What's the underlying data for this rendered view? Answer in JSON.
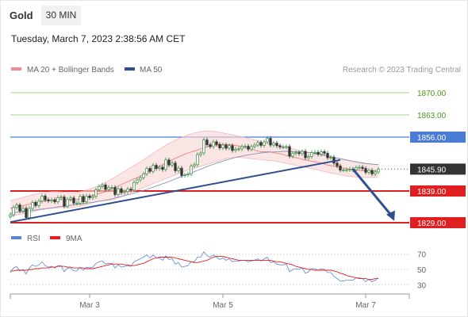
{
  "header": {
    "symbol": "Gold",
    "timeframe": "30 MIN",
    "datetime": "Tuesday, March 7, 2023 2:38:56 AM CET"
  },
  "colors": {
    "up_candle": "#2e8b3a",
    "down_candle": "#333333",
    "bollinger_fill": "#f9d6d6",
    "ma20": "#e57373",
    "ma50": "#7a8ab8",
    "trendline": "#2d4f8f",
    "resistance_green": "#a9d68a",
    "resistance_blue": "#4a7bd6",
    "support_red": "#e02020",
    "rsi": "#5b82d6",
    "rsi_ma": "#e02020"
  },
  "chart_data": [
    {
      "type": "candlestick",
      "instrument": "Gold",
      "timeframe": "30 MIN",
      "legend": [
        {
          "label": "MA 20 + Bollinger Bands",
          "color": "#f28b8b"
        },
        {
          "label": "MA 50",
          "color": "#2d4f8f"
        }
      ],
      "watermark": "Research © 2023 Trading Central",
      "x_ticks": [
        "Mar 3",
        "Mar 5",
        "Mar 7"
      ],
      "ylim": [
        1826,
        1874
      ],
      "levels": [
        {
          "value": 1870.0,
          "label": "1870.00",
          "kind": "resistance",
          "color": "#a9d68a",
          "label_color": "#4a9a1a",
          "label_bg": "#ffffff"
        },
        {
          "value": 1863.0,
          "label": "1863.00",
          "kind": "resistance",
          "color": "#a9d68a",
          "label_color": "#4a9a1a",
          "label_bg": "#ffffff"
        },
        {
          "value": 1856.0,
          "label": "1856.00",
          "kind": "pivot",
          "color": "#4a7bd6",
          "label_color": "#ffffff",
          "label_bg": "#4a7bd6"
        },
        {
          "value": 1845.9,
          "label": "1845.90",
          "kind": "last_price",
          "color": "#333333",
          "label_color": "#ffffff",
          "label_bg": "#333333"
        },
        {
          "value": 1839.0,
          "label": "1839.00",
          "kind": "support",
          "color": "#e02020",
          "label_color": "#ffffff",
          "label_bg": "#e02020"
        },
        {
          "value": 1829.0,
          "label": "1829.00",
          "kind": "support",
          "color": "#e02020",
          "label_color": "#ffffff",
          "label_bg": "#e02020"
        }
      ],
      "close": [
        1831.5,
        1833.8,
        1834.6,
        1832.7,
        1833.5,
        1830.6,
        1833.5,
        1835.4,
        1834.4,
        1835.8,
        1837.4,
        1836.2,
        1835.9,
        1836.2,
        1835.6,
        1836.9,
        1837.1,
        1834.2,
        1836.4,
        1836.8,
        1835.2,
        1835.2,
        1837.3,
        1835.6,
        1837.4,
        1836.9,
        1837.3,
        1839.4,
        1840.4,
        1840.9,
        1839.5,
        1840.1,
        1840.1,
        1837.9,
        1839.7,
        1838.5,
        1838.8,
        1839.6,
        1839.3,
        1841.7,
        1842.5,
        1843.2,
        1844.4,
        1846.1,
        1845.2,
        1847.1,
        1846.1,
        1846.5,
        1845.8,
        1848.8,
        1847.2,
        1847.8,
        1845.4,
        1846.2,
        1843.9,
        1844.1,
        1844.4,
        1846.9,
        1847.3,
        1850.5,
        1851.0,
        1855.1,
        1853.6,
        1853.0,
        1854.5,
        1853.7,
        1852.6,
        1853.5,
        1852.5,
        1853.3,
        1851.8,
        1852.2,
        1852.3,
        1853.0,
        1853.1,
        1852.2,
        1853.0,
        1853.5,
        1854.3,
        1853.4,
        1854.5,
        1855.6,
        1853.5,
        1854.1,
        1853.3,
        1852.9,
        1852.9,
        1853.0,
        1850.0,
        1850.9,
        1851.1,
        1850.8,
        1851.5,
        1849.5,
        1849.9,
        1851.1,
        1851.2,
        1850.6,
        1851.4,
        1850.9,
        1849.5,
        1849.6,
        1847.8,
        1846.9,
        1845.6,
        1845.6,
        1845.7,
        1845.9,
        1845.7,
        1846.4,
        1846.5,
        1846.1,
        1844.9,
        1845.5,
        1844.4,
        1845.0,
        1845.9
      ],
      "ma20": [
        1833.5,
        1833.7,
        1833.9,
        1834.1,
        1834.4,
        1834.6,
        1834.8,
        1835.1,
        1835.3,
        1835.5,
        1835.7,
        1835.9,
        1836.0,
        1836.1,
        1836.2,
        1836.3,
        1836.3,
        1836.2,
        1836.1,
        1836.1,
        1836.2,
        1836.3,
        1836.5,
        1836.7,
        1837.0,
        1837.3,
        1837.6,
        1837.9,
        1838.2,
        1838.5,
        1838.8,
        1839.2,
        1839.6,
        1840.1,
        1840.6,
        1841.0,
        1841.5,
        1841.9,
        1842.4,
        1842.8,
        1843.2,
        1843.7,
        1844.3,
        1844.8,
        1845.3,
        1845.8,
        1846.3,
        1846.8,
        1847.3,
        1847.8,
        1848.3,
        1848.8,
        1849.3,
        1849.7,
        1850.2,
        1850.6,
        1851.0,
        1851.3,
        1851.6,
        1851.9,
        1852.3,
        1852.6,
        1852.9,
        1853.2,
        1853.4,
        1853.5,
        1853.6,
        1853.7,
        1853.7,
        1853.6,
        1853.5,
        1853.4,
        1853.2,
        1853.0,
        1852.8,
        1852.5,
        1852.2,
        1851.9,
        1851.6,
        1851.4,
        1851.4,
        1851.4,
        1851.3,
        1851.1,
        1850.9,
        1850.7,
        1850.5,
        1850.2,
        1850.0,
        1849.7,
        1849.5,
        1849.3,
        1849.0,
        1848.8,
        1848.6,
        1848.4,
        1848.2,
        1848.0,
        1847.8,
        1847.5,
        1847.2,
        1847.0,
        1846.8,
        1846.6,
        1846.4,
        1846.2,
        1846.0,
        1845.9,
        1845.7,
        1845.6,
        1845.5,
        1845.5,
        1845.4,
        1845.4,
        1845.4,
        1845.3,
        1845.3
      ],
      "bb_upper": [
        1836.0,
        1836.2,
        1836.4,
        1836.7,
        1837.0,
        1837.3,
        1837.5,
        1837.8,
        1838.0,
        1838.2,
        1838.4,
        1838.6,
        1838.7,
        1838.8,
        1838.8,
        1838.8,
        1838.7,
        1838.6,
        1838.5,
        1838.5,
        1838.5,
        1838.6,
        1838.8,
        1839.0,
        1839.3,
        1839.6,
        1840.0,
        1840.4,
        1840.8,
        1841.3,
        1841.8,
        1842.3,
        1842.8,
        1843.4,
        1844.0,
        1844.6,
        1845.2,
        1845.8,
        1846.4,
        1847.0,
        1847.6,
        1848.2,
        1848.9,
        1849.5,
        1850.2,
        1850.9,
        1851.5,
        1852.2,
        1852.8,
        1853.4,
        1854.0,
        1854.5,
        1855.0,
        1855.5,
        1855.9,
        1856.3,
        1856.7,
        1857.0,
        1857.3,
        1857.5,
        1857.7,
        1857.8,
        1857.9,
        1857.9,
        1857.8,
        1857.7,
        1857.5,
        1857.3,
        1857.1,
        1856.9,
        1856.7,
        1856.5,
        1856.3,
        1856.1,
        1855.9,
        1855.6,
        1855.4,
        1855.1,
        1854.8,
        1854.5,
        1854.3,
        1854.1,
        1853.9,
        1853.7,
        1853.5,
        1853.3,
        1853.1,
        1852.9,
        1852.6,
        1852.3,
        1852.1,
        1851.8,
        1851.6,
        1851.4,
        1851.2,
        1851.0,
        1850.7,
        1850.5,
        1850.3,
        1850.1,
        1849.9,
        1849.7,
        1849.5,
        1849.3,
        1849.1,
        1848.9,
        1848.7,
        1848.5,
        1848.3,
        1848.1,
        1847.9,
        1847.7,
        1847.6,
        1847.5,
        1847.5,
        1847.4,
        1847.4
      ],
      "bb_lower": [
        1831.0,
        1831.2,
        1831.4,
        1831.6,
        1831.8,
        1832.0,
        1832.2,
        1832.4,
        1832.7,
        1832.9,
        1833.1,
        1833.3,
        1833.4,
        1833.5,
        1833.6,
        1833.7,
        1833.8,
        1833.8,
        1833.8,
        1833.8,
        1833.9,
        1834.0,
        1834.2,
        1834.4,
        1834.7,
        1835.0,
        1835.3,
        1835.5,
        1835.7,
        1835.8,
        1835.9,
        1836.0,
        1836.2,
        1836.5,
        1836.9,
        1837.3,
        1837.7,
        1838.1,
        1838.5,
        1838.9,
        1839.3,
        1839.7,
        1840.1,
        1840.5,
        1840.9,
        1841.3,
        1841.7,
        1842.1,
        1842.5,
        1842.9,
        1843.3,
        1843.7,
        1844.1,
        1844.5,
        1844.9,
        1845.3,
        1845.6,
        1845.9,
        1846.2,
        1846.5,
        1846.8,
        1847.1,
        1847.4,
        1847.7,
        1848.0,
        1848.3,
        1848.6,
        1848.9,
        1849.2,
        1849.4,
        1849.5,
        1849.6,
        1849.6,
        1849.5,
        1849.4,
        1849.3,
        1849.2,
        1849.1,
        1849.0,
        1848.9,
        1848.8,
        1848.7,
        1848.6,
        1848.5,
        1848.3,
        1848.1,
        1847.9,
        1847.7,
        1847.5,
        1847.3,
        1847.1,
        1846.9,
        1846.7,
        1846.5,
        1846.3,
        1846.1,
        1845.9,
        1845.6,
        1845.4,
        1845.1,
        1844.9,
        1844.7,
        1844.5,
        1844.3,
        1844.1,
        1843.9,
        1843.7,
        1843.6,
        1843.5,
        1843.4,
        1843.3,
        1843.3,
        1843.3,
        1843.3,
        1843.3,
        1843.3,
        1843.3
      ],
      "ma50": [
        1832.0,
        1832.1,
        1832.3,
        1832.4,
        1832.5,
        1832.6,
        1832.8,
        1832.9,
        1833.0,
        1833.2,
        1833.3,
        1833.4,
        1833.6,
        1833.7,
        1833.8,
        1834.0,
        1834.1,
        1834.2,
        1834.4,
        1834.5,
        1834.6,
        1834.8,
        1834.9,
        1835.0,
        1835.2,
        1835.3,
        1835.4,
        1835.6,
        1835.8,
        1835.9,
        1836.1,
        1836.3,
        1836.5,
        1836.8,
        1837.0,
        1837.2,
        1837.5,
        1837.8,
        1838.0,
        1838.3,
        1838.6,
        1838.9,
        1839.2,
        1839.5,
        1839.9,
        1840.2,
        1840.6,
        1840.9,
        1841.3,
        1841.6,
        1842.0,
        1842.4,
        1842.8,
        1843.2,
        1843.6,
        1844.0,
        1844.3,
        1844.7,
        1845.1,
        1845.5,
        1845.9,
        1846.3,
        1846.7,
        1847.1,
        1847.4,
        1847.8,
        1848.1,
        1848.4,
        1848.8,
        1849.0,
        1849.3,
        1849.6,
        1849.8,
        1850.0,
        1850.2,
        1850.4,
        1850.6,
        1850.7,
        1850.9,
        1851.0,
        1851.1,
        1851.2,
        1851.3,
        1851.3,
        1851.4,
        1851.4,
        1851.5,
        1851.5,
        1851.5,
        1851.4,
        1851.4,
        1851.4,
        1851.3,
        1851.2,
        1851.1,
        1851.0,
        1850.9,
        1850.7,
        1850.5,
        1850.3,
        1850.1,
        1849.9,
        1849.6,
        1849.4,
        1849.2,
        1849.0,
        1848.8,
        1848.6,
        1848.4,
        1848.2,
        1848.0,
        1847.9,
        1847.7,
        1847.6,
        1847.5,
        1847.4,
        1847.3
      ],
      "trendline": {
        "from": [
          0,
          1829.2
        ],
        "to": [
          104,
          1848.8
        ]
      },
      "projection_arrow": {
        "from": [
          108,
          1845.9
        ],
        "to": [
          121,
          1829.6
        ]
      }
    },
    {
      "type": "line",
      "indicator": "RSI",
      "legend": [
        {
          "label": "RSI",
          "color": "#5b82d6"
        },
        {
          "label": "9MA",
          "color": "#e02020"
        }
      ],
      "ylim": [
        20,
        80
      ],
      "y_ticks": [
        70,
        50,
        30
      ],
      "rsi": [
        46,
        52,
        54,
        48,
        50,
        44,
        52,
        56,
        54,
        56,
        60,
        55,
        53,
        54,
        52,
        55,
        55,
        47,
        52,
        52,
        48,
        48,
        53,
        49,
        53,
        52,
        53,
        58,
        60,
        61,
        57,
        58,
        58,
        52,
        56,
        53,
        54,
        55,
        54,
        60,
        62,
        64,
        66,
        69,
        65,
        69,
        65,
        65,
        62,
        68,
        63,
        64,
        57,
        59,
        53,
        54,
        55,
        60,
        60,
        66,
        66,
        73,
        68,
        66,
        69,
        66,
        63,
        65,
        62,
        64,
        60,
        61,
        61,
        62,
        62,
        60,
        61,
        62,
        64,
        61,
        64,
        66,
        59,
        60,
        57,
        56,
        56,
        57,
        47,
        50,
        51,
        50,
        52,
        45,
        47,
        51,
        51,
        49,
        51,
        50,
        46,
        46,
        41,
        38,
        35,
        35,
        36,
        36,
        36,
        39,
        39,
        38,
        34,
        37,
        34,
        36,
        39
      ],
      "ma9": [
        48,
        48,
        49,
        49,
        49,
        49,
        50,
        50,
        51,
        51,
        52,
        52,
        52,
        53,
        53,
        54,
        54,
        54,
        53,
        53,
        52,
        52,
        52,
        52,
        51,
        51,
        51,
        52,
        53,
        54,
        55,
        56,
        57,
        57,
        57,
        57,
        56,
        56,
        55,
        55,
        56,
        57,
        58,
        60,
        62,
        64,
        65,
        66,
        66,
        66,
        66,
        66,
        65,
        64,
        63,
        62,
        61,
        60,
        59,
        59,
        60,
        61,
        62,
        64,
        66,
        67,
        67,
        67,
        66,
        65,
        64,
        63,
        62,
        62,
        62,
        62,
        62,
        62,
        62,
        62,
        62,
        62,
        62,
        61,
        60,
        60,
        59,
        58,
        57,
        56,
        54,
        53,
        52,
        51,
        50,
        50,
        49,
        49,
        49,
        49,
        49,
        49,
        48,
        47,
        45,
        44,
        42,
        41,
        40,
        39,
        38,
        38,
        38,
        37,
        37,
        38,
        38
      ]
    }
  ]
}
